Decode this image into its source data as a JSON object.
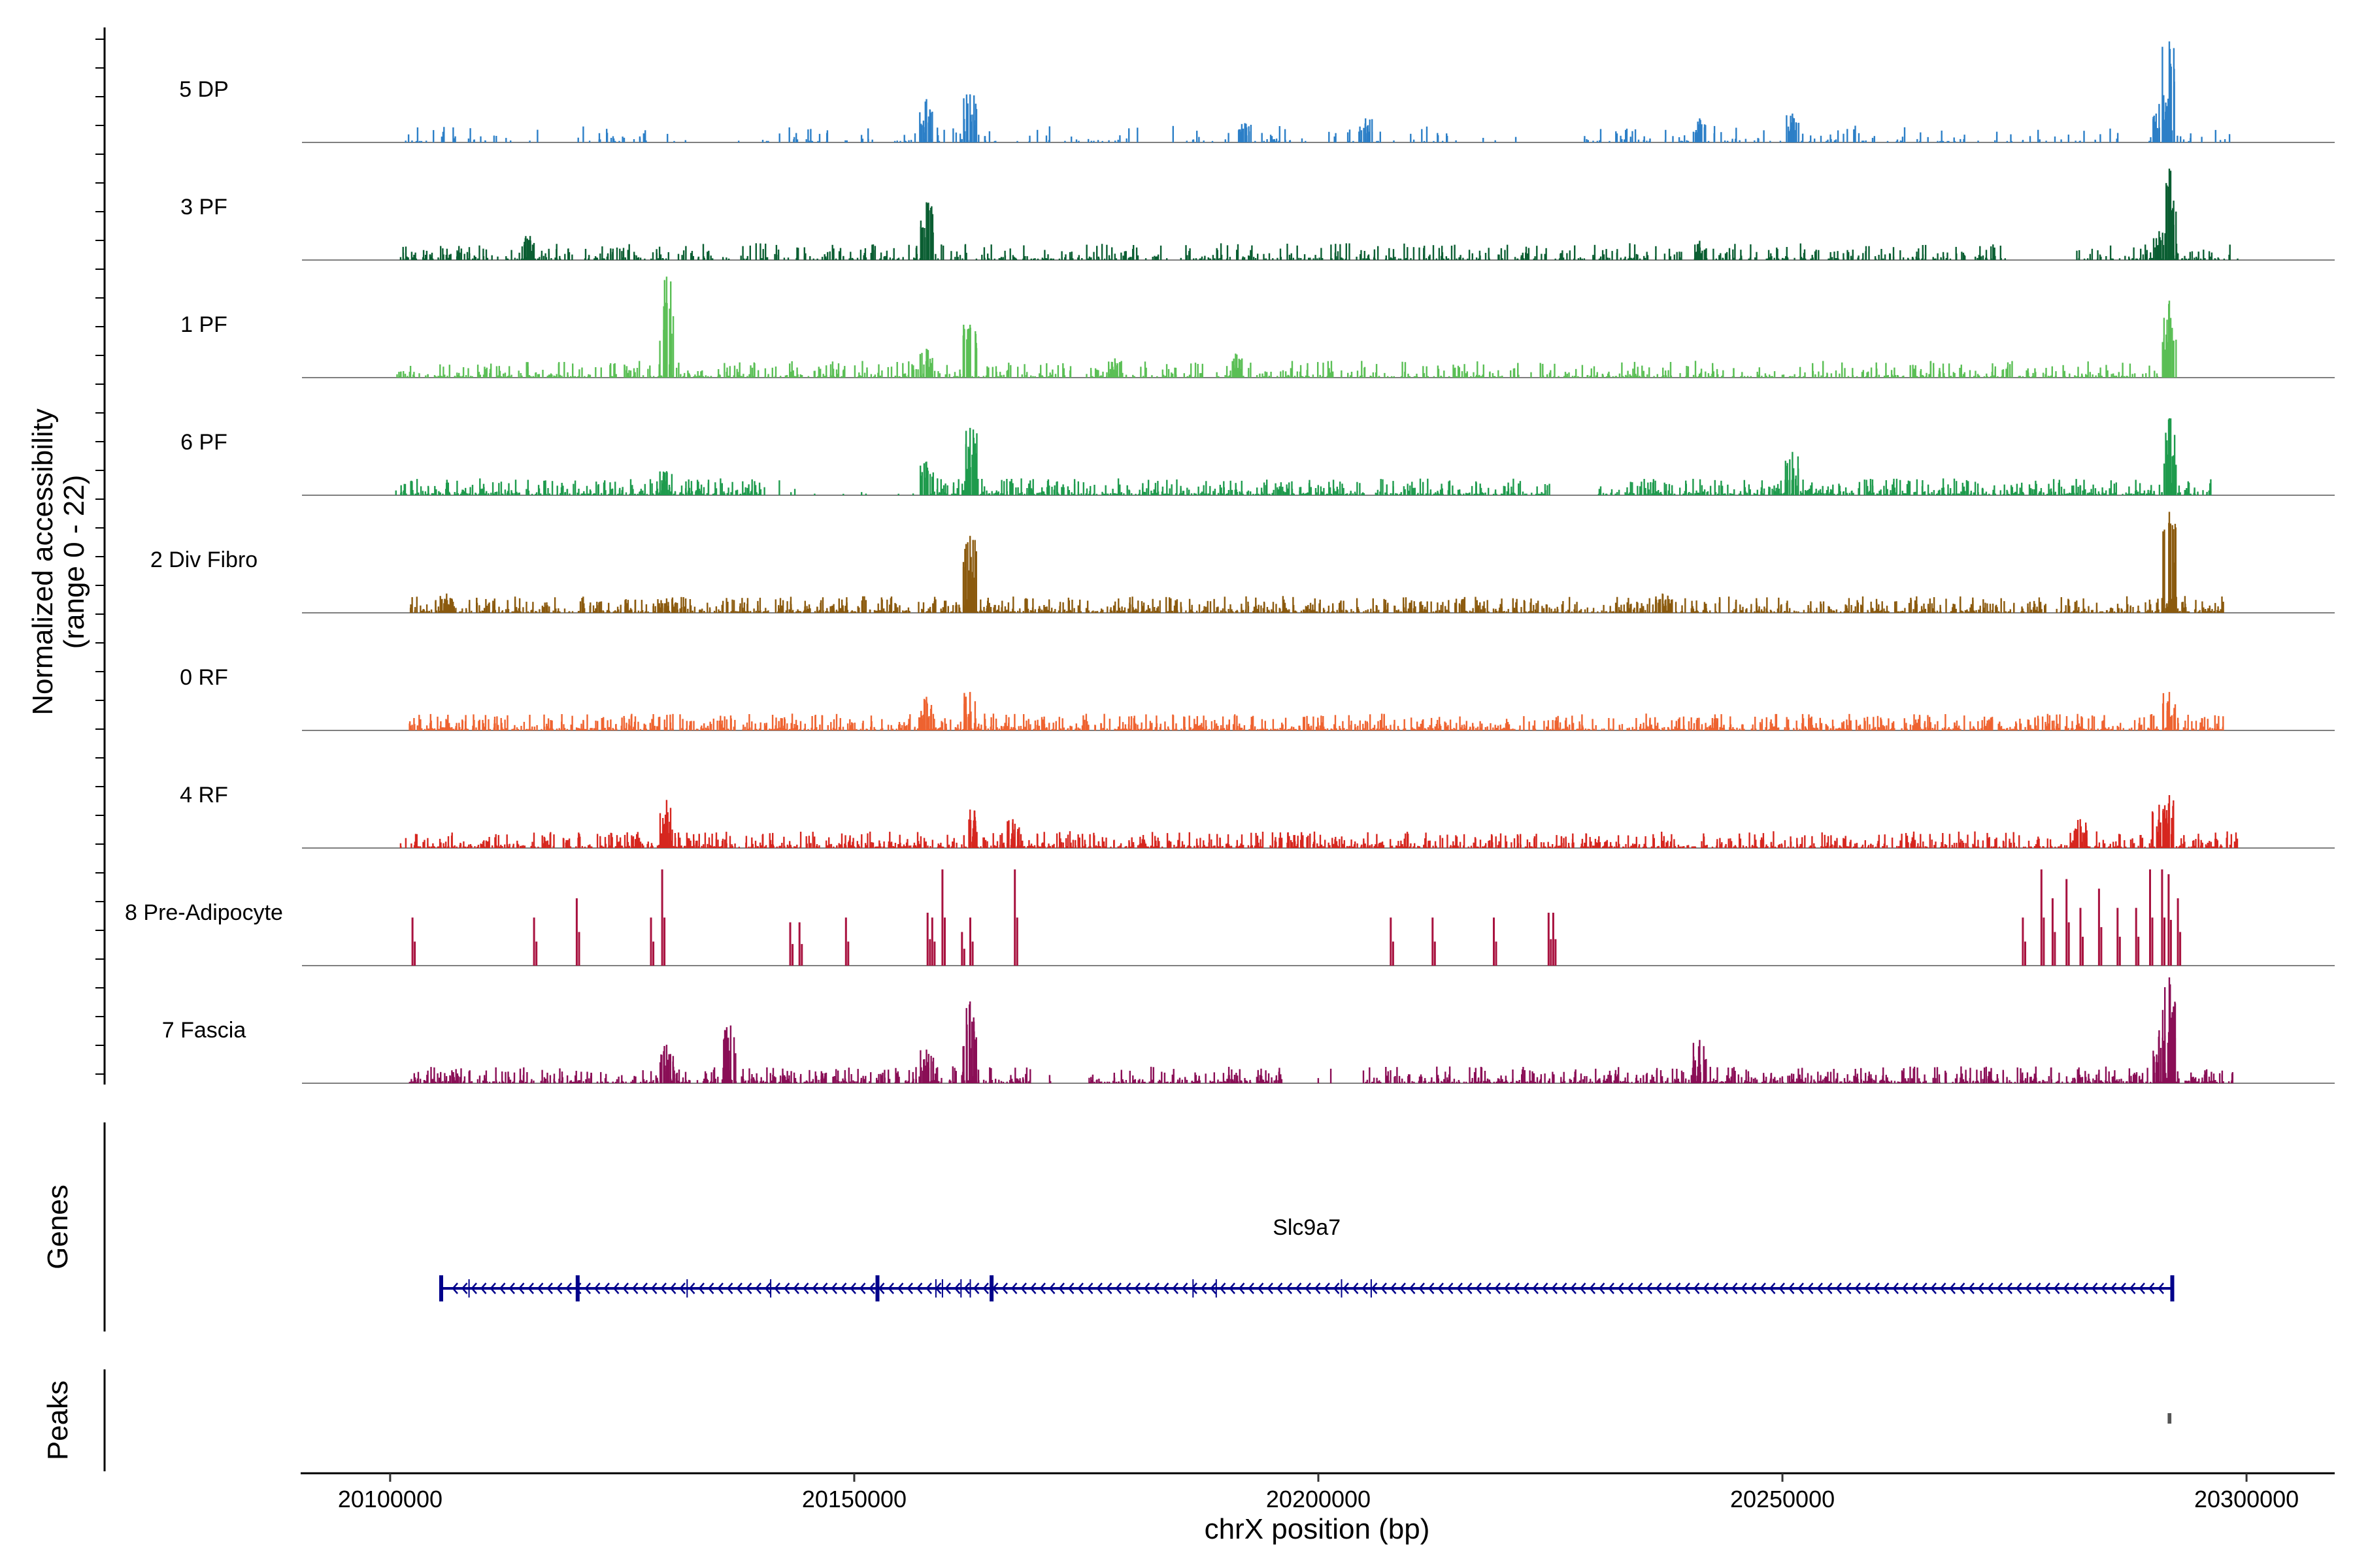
{
  "chart_data": {
    "type": "coverage",
    "y_axis_title_line1": "Normalized accessibility",
    "y_axis_title_line2": "(range 0 - 22)",
    "y_range": [
      0,
      22
    ],
    "x_axis_title": "chrX position (bp)",
    "x_range": [
      20090500,
      20309500
    ],
    "x_ticks": [
      20100000,
      20150000,
      20200000,
      20250000,
      20300000
    ],
    "x_tick_labels": [
      "20100000",
      "20150000",
      "20200000",
      "20250000",
      "20300000"
    ],
    "genes_title": "Genes",
    "peaks_title": "Peaks",
    "tracks": [
      {
        "name": "5 DP",
        "color": "#2C7FC7",
        "density": "sparse",
        "coverage_start": 20100500,
        "coverage_end": 20298500,
        "gaps": [
          [
            20113000,
            20120000
          ],
          [
            20131000,
            20140000
          ],
          [
            20181000,
            20186000
          ],
          [
            20215000,
            20228000
          ]
        ],
        "peaks": [
          [
            20157700,
            9
          ],
          [
            20162400,
            10
          ],
          [
            20192000,
            4
          ],
          [
            20205000,
            5
          ],
          [
            20241000,
            5
          ],
          [
            20251000,
            6
          ],
          [
            20291600,
            21
          ],
          [
            20290500,
            8
          ]
        ]
      },
      {
        "name": "3 PF",
        "color": "#0B5E32",
        "density": "medium",
        "coverage_start": 20101000,
        "coverage_end": 20299000,
        "gaps": [
          [
            20183000,
            20185000
          ],
          [
            20274000,
            20281000
          ]
        ],
        "peaks": [
          [
            20157700,
            12
          ],
          [
            20115000,
            5
          ],
          [
            20241000,
            4
          ],
          [
            20291600,
            19
          ],
          [
            20290500,
            6
          ]
        ]
      },
      {
        "name": "1 PF",
        "color": "#5ABF55",
        "density": "medium",
        "coverage_start": 20100500,
        "coverage_end": 20291800,
        "gaps": [],
        "peaks": [
          [
            20129700,
            21
          ],
          [
            20157700,
            6
          ],
          [
            20162400,
            11
          ],
          [
            20178000,
            4
          ],
          [
            20191000,
            5
          ],
          [
            20291600,
            16
          ]
        ]
      },
      {
        "name": "6 PF",
        "color": "#1E9B4D",
        "density": "dense",
        "coverage_start": 20100500,
        "coverage_end": 20296500,
        "gaps": [
          [
            20140000,
            20158000
          ],
          [
            20225000,
            20230000
          ]
        ],
        "peaks": [
          [
            20162400,
            14
          ],
          [
            20157700,
            7
          ],
          [
            20129700,
            5
          ],
          [
            20251000,
            9
          ],
          [
            20291600,
            16
          ]
        ]
      },
      {
        "name": "2 Div Fibro",
        "color": "#8B5A0E",
        "density": "dense",
        "coverage_start": 20102000,
        "coverage_end": 20297500,
        "gaps": [],
        "peaks": [
          [
            20162400,
            16
          ],
          [
            20106000,
            4
          ],
          [
            20129700,
            3
          ],
          [
            20237000,
            4
          ],
          [
            20291600,
            21
          ]
        ]
      },
      {
        "name": "0 RF",
        "color": "#EE6330",
        "density": "dense",
        "coverage_start": 20102000,
        "coverage_end": 20297500,
        "gaps": [],
        "peaks": [
          [
            20157700,
            7
          ],
          [
            20162400,
            8
          ],
          [
            20291600,
            8
          ]
        ]
      },
      {
        "name": "4 RF",
        "color": "#D6261F",
        "density": "dense",
        "coverage_start": 20101000,
        "coverage_end": 20299000,
        "gaps": [],
        "peaks": [
          [
            20129700,
            10
          ],
          [
            20162400,
            8
          ],
          [
            20167000,
            6
          ],
          [
            20291600,
            11
          ],
          [
            20290500,
            9
          ],
          [
            20282000,
            6
          ]
        ]
      },
      {
        "name": "8 Pre-Adipocyte",
        "color": "#A8123F",
        "density": "bars",
        "coverage_start": 20102000,
        "coverage_end": 20293000,
        "gaps": [],
        "peaks": [
          [
            20102300,
            10
          ],
          [
            20115400,
            10
          ],
          [
            20120000,
            14
          ],
          [
            20128000,
            10
          ],
          [
            20129200,
            20
          ],
          [
            20143000,
            9
          ],
          [
            20144000,
            9
          ],
          [
            20149000,
            10
          ],
          [
            20157800,
            11
          ],
          [
            20158300,
            10
          ],
          [
            20159400,
            20
          ],
          [
            20161500,
            7
          ],
          [
            20162400,
            10
          ],
          [
            20167200,
            20
          ],
          [
            20207700,
            10
          ],
          [
            20212200,
            10
          ],
          [
            20218800,
            10
          ],
          [
            20224700,
            11
          ],
          [
            20225200,
            11
          ],
          [
            20275800,
            10
          ],
          [
            20277800,
            20
          ],
          [
            20279000,
            14
          ],
          [
            20280500,
            18
          ],
          [
            20282000,
            12
          ],
          [
            20284000,
            16
          ],
          [
            20286000,
            12
          ],
          [
            20288000,
            12
          ],
          [
            20289500,
            20
          ],
          [
            20290800,
            20
          ],
          [
            20291500,
            19
          ],
          [
            20292500,
            14
          ]
        ]
      },
      {
        "name": "7 Fascia",
        "color": "#8A0E56",
        "density": "dense",
        "coverage_start": 20102000,
        "coverage_end": 20298500,
        "gaps": [
          [
            20169000,
            20175000
          ],
          [
            20196000,
            20205000
          ]
        ],
        "peaks": [
          [
            20136600,
            12
          ],
          [
            20129700,
            8
          ],
          [
            20157700,
            7
          ],
          [
            20162400,
            17
          ],
          [
            20241000,
            9
          ],
          [
            20291600,
            23
          ],
          [
            20290500,
            11
          ]
        ]
      }
    ],
    "gene": {
      "name": "Slc9a7",
      "start": 20105500,
      "end": 20292000,
      "strand": "-",
      "color": "#00008B",
      "exons": [
        20105500,
        20108500,
        20120200,
        20132000,
        20141000,
        20152500,
        20158800,
        20159500,
        20161500,
        20162500,
        20164800,
        20186500,
        20189000,
        20202500,
        20205700,
        20292000
      ]
    },
    "peak_regions": [
      [
        20291500,
        20291900
      ]
    ]
  }
}
